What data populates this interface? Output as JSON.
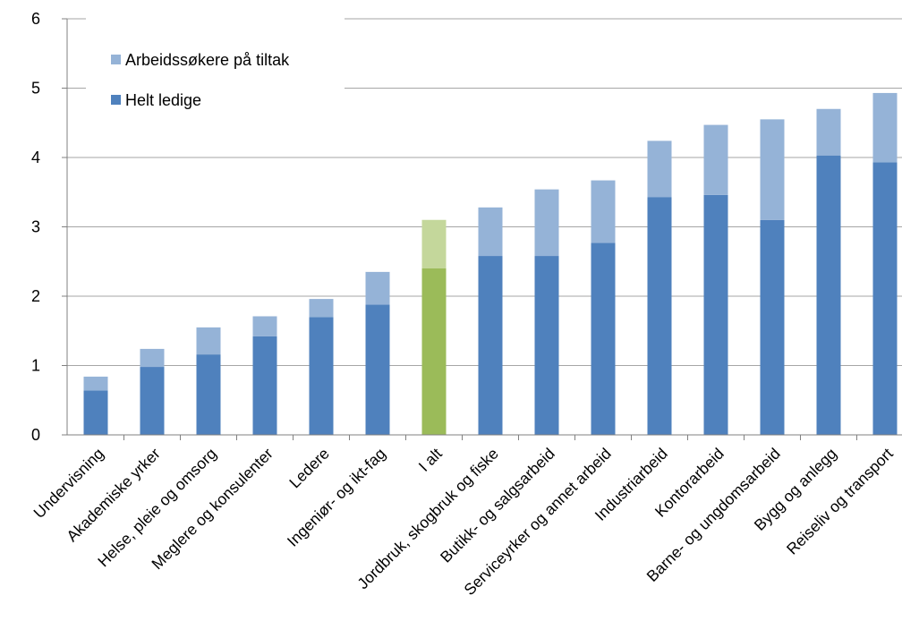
{
  "chart_data": {
    "type": "bar",
    "stacked": true,
    "title": "",
    "xlabel": "",
    "ylabel": "",
    "ylim": [
      0,
      6
    ],
    "yticks": [
      "0",
      "1",
      "2",
      "3",
      "4",
      "5",
      "6"
    ],
    "grid": true,
    "legend_position": "top-left",
    "categories": [
      "Undervisning",
      "Akademiske yrker",
      "Helse, pleie og omsorg",
      "Meglere og konsulenter",
      "Ledere",
      "Ingeniør- og ikt-fag",
      "I alt",
      "Jordbruk, skogbruk og fiske",
      "Butikk- og salgsarbeid",
      "Serviceyrker og annet arbeid",
      "Industriarbeid",
      "Kontorarbeid",
      "Barne- og ungdomsarbeid",
      "Bygg og anlegg",
      "Reiseliv og transport"
    ],
    "highlight_category": "I alt",
    "series": [
      {
        "name": "Helt ledige",
        "color": "#4f81bd",
        "highlight_color": "#9bbb59",
        "values": [
          0.64,
          0.98,
          1.16,
          1.42,
          1.7,
          1.88,
          2.4,
          2.58,
          2.58,
          2.77,
          3.43,
          3.46,
          3.1,
          4.03,
          3.93
        ]
      },
      {
        "name": "Arbeidssøkere på tiltak",
        "color": "#95b3d7",
        "highlight_color": "#c4d79b",
        "values": [
          0.2,
          0.26,
          0.39,
          0.29,
          0.26,
          0.47,
          0.7,
          0.7,
          0.96,
          0.9,
          0.81,
          1.01,
          1.45,
          0.67,
          1.0
        ]
      }
    ]
  }
}
